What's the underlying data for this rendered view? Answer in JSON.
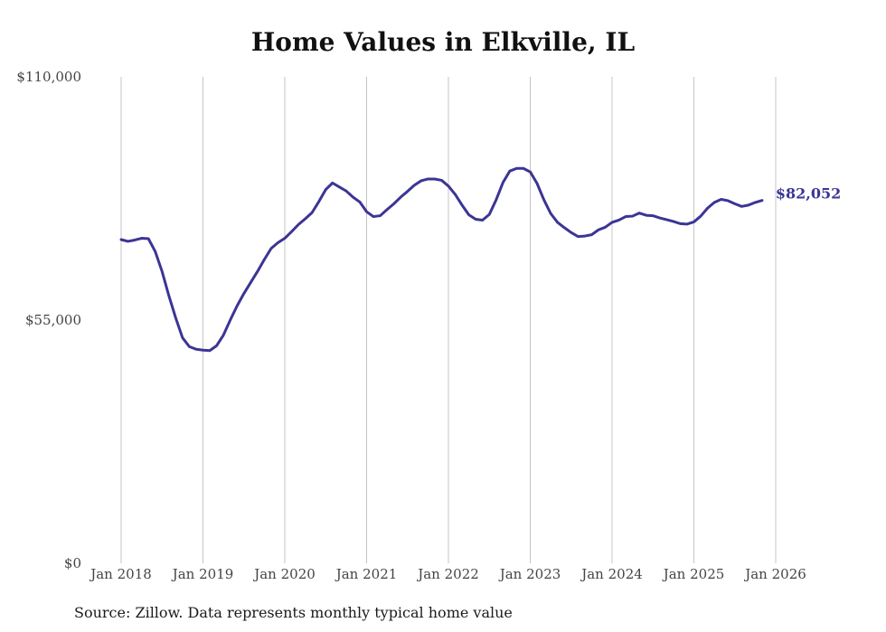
{
  "chart_data": {
    "type": "line",
    "title": "Home Values in Elkville, IL",
    "source": "Source: Zillow. Data represents monthly typical home value",
    "xlabel": "",
    "ylabel": "",
    "ylim": [
      0,
      110000
    ],
    "y_ticks": [
      {
        "value": 0,
        "label": "$0"
      },
      {
        "value": 55000,
        "label": "$55,000"
      },
      {
        "value": 110000,
        "label": "$110,000"
      }
    ],
    "x_ticks": [
      "Jan 2018",
      "Jan 2019",
      "Jan 2020",
      "Jan 2021",
      "Jan 2022",
      "Jan 2023",
      "Jan 2024",
      "Jan 2025",
      "Jan 2026"
    ],
    "grid": "vertical",
    "line_color": "#3b3594",
    "end_label": "$82,052",
    "series": [
      {
        "name": "Typical home value",
        "start": "Jan 2018",
        "values": [
          73200,
          72800,
          73100,
          73500,
          73400,
          70500,
          66000,
          60500,
          55500,
          51000,
          49000,
          48400,
          48200,
          48100,
          49200,
          51600,
          55000,
          58200,
          61000,
          63500,
          66000,
          68700,
          71200,
          72500,
          73500,
          75000,
          76600,
          77900,
          79300,
          81800,
          84500,
          86000,
          85100,
          84200,
          82800,
          81700,
          79500,
          78400,
          78600,
          80000,
          81300,
          82800,
          84100,
          85500,
          86500,
          86900,
          86900,
          86600,
          85300,
          83400,
          81000,
          78800,
          77800,
          77600,
          78900,
          82200,
          86100,
          88700,
          89300,
          89300,
          88500,
          85900,
          82200,
          79100,
          77100,
          75900,
          74800,
          73900,
          74000,
          74300,
          75400,
          76000,
          77100,
          77600,
          78400,
          78500,
          79200,
          78700,
          78600,
          78100,
          77700,
          77300,
          76800,
          76700,
          77200,
          78500,
          80300,
          81600,
          82300,
          82000,
          81300,
          80700,
          81000,
          81600,
          82052
        ]
      }
    ]
  }
}
